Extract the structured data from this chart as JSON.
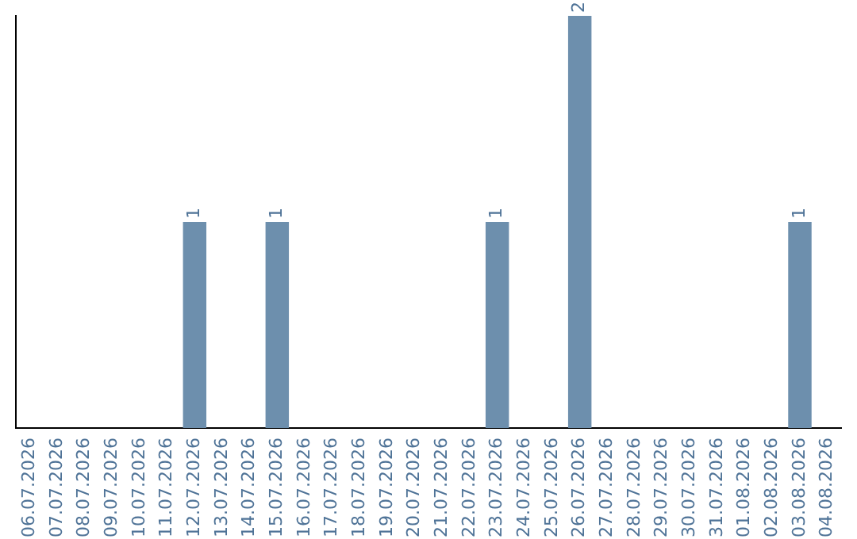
{
  "chart_data": {
    "type": "bar",
    "categories": [
      "06.07.2026",
      "07.07.2026",
      "08.07.2026",
      "09.07.2026",
      "10.07.2026",
      "11.07.2026",
      "12.07.2026",
      "13.07.2026",
      "14.07.2026",
      "15.07.2026",
      "16.07.2026",
      "17.07.2026",
      "18.07.2026",
      "19.07.2026",
      "20.07.2026",
      "21.07.2026",
      "22.07.2026",
      "23.07.2026",
      "24.07.2026",
      "25.07.2026",
      "26.07.2026",
      "27.07.2026",
      "28.07.2026",
      "29.07.2026",
      "30.07.2026",
      "31.07.2026",
      "01.08.2026",
      "02.08.2026",
      "03.08.2026",
      "04.08.2026"
    ],
    "values": [
      0,
      0,
      0,
      0,
      0,
      0,
      1,
      0,
      0,
      1,
      0,
      0,
      0,
      0,
      0,
      0,
      0,
      1,
      0,
      0,
      2,
      0,
      0,
      0,
      0,
      0,
      0,
      0,
      1,
      0
    ],
    "value_labels": [
      null,
      null,
      null,
      null,
      null,
      null,
      "1",
      null,
      null,
      "1",
      null,
      null,
      null,
      null,
      null,
      null,
      null,
      "1",
      null,
      null,
      "2",
      null,
      null,
      null,
      null,
      null,
      null,
      null,
      "1",
      null
    ],
    "color": "#6d8fad",
    "ylim": [
      0,
      2
    ],
    "grid": false,
    "legend": false,
    "tick_labels": "x"
  }
}
